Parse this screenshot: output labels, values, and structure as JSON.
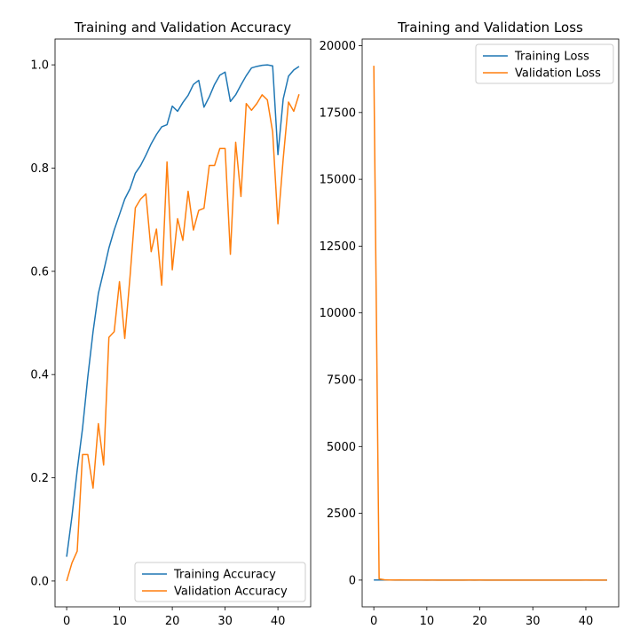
{
  "chart_data": [
    {
      "type": "line",
      "title": "Training and Validation Accuracy",
      "xlabel": "",
      "ylabel": "",
      "xlim": [
        -2.2,
        46.2
      ],
      "ylim": [
        -0.05,
        1.05
      ],
      "xticks": [
        0,
        10,
        20,
        30,
        40
      ],
      "yticks": [
        0.0,
        0.2,
        0.4,
        0.6,
        0.8,
        1.0
      ],
      "ytick_labels": [
        "0.0",
        "0.2",
        "0.4",
        "0.6",
        "0.8",
        "1.0"
      ],
      "grid": false,
      "legend_position": "bottom-right",
      "x": [
        0,
        1,
        2,
        3,
        4,
        5,
        6,
        7,
        8,
        9,
        10,
        11,
        12,
        13,
        14,
        15,
        16,
        17,
        18,
        19,
        20,
        21,
        22,
        23,
        24,
        25,
        26,
        27,
        28,
        29,
        30,
        31,
        32,
        33,
        34,
        35,
        36,
        37,
        38,
        39,
        40,
        41,
        42,
        43,
        44
      ],
      "series": [
        {
          "name": "Training Accuracy",
          "color": "#1f77b4",
          "values": [
            0.047,
            0.125,
            0.215,
            0.295,
            0.395,
            0.483,
            0.557,
            0.6,
            0.645,
            0.68,
            0.71,
            0.74,
            0.76,
            0.79,
            0.805,
            0.825,
            0.847,
            0.865,
            0.88,
            0.884,
            0.92,
            0.91,
            0.927,
            0.941,
            0.962,
            0.97,
            0.918,
            0.938,
            0.962,
            0.98,
            0.986,
            0.929,
            0.942,
            0.961,
            0.979,
            0.994,
            0.997,
            0.999,
            1.0,
            0.998,
            0.826,
            0.934,
            0.978,
            0.99,
            0.997
          ]
        },
        {
          "name": "Validation Accuracy",
          "color": "#ff7f0e",
          "values": [
            0.0,
            0.035,
            0.058,
            0.245,
            0.245,
            0.18,
            0.305,
            0.225,
            0.472,
            0.483,
            0.58,
            0.47,
            0.59,
            0.723,
            0.74,
            0.75,
            0.638,
            0.682,
            0.573,
            0.812,
            0.603,
            0.702,
            0.66,
            0.755,
            0.68,
            0.718,
            0.722,
            0.805,
            0.805,
            0.838,
            0.838,
            0.633,
            0.85,
            0.745,
            0.925,
            0.912,
            0.925,
            0.942,
            0.932,
            0.87,
            0.692,
            0.818,
            0.928,
            0.91,
            0.943
          ]
        }
      ]
    },
    {
      "type": "line",
      "title": "Training and Validation Loss",
      "xlabel": "",
      "ylabel": "",
      "xlim": [
        -2.2,
        46.2
      ],
      "ylim": [
        -1000,
        20250
      ],
      "xticks": [
        0,
        10,
        20,
        30,
        40
      ],
      "yticks": [
        0,
        2500,
        5000,
        7500,
        10000,
        12500,
        15000,
        17500,
        20000
      ],
      "ytick_labels": [
        "0",
        "2500",
        "5000",
        "7500",
        "10000",
        "12500",
        "15000",
        "17500",
        "20000"
      ],
      "grid": false,
      "legend_position": "top-right",
      "x": [
        0,
        1,
        2,
        3,
        4,
        5,
        6,
        7,
        8,
        9,
        10,
        11,
        12,
        13,
        14,
        15,
        16,
        17,
        18,
        19,
        20,
        21,
        22,
        23,
        24,
        25,
        26,
        27,
        28,
        29,
        30,
        31,
        32,
        33,
        34,
        35,
        36,
        37,
        38,
        39,
        40,
        41,
        42,
        43,
        44
      ],
      "series": [
        {
          "name": "Training Loss",
          "color": "#1f77b4",
          "values": [
            3.7,
            3.2,
            2.8,
            2.5,
            2.2,
            1.9,
            1.6,
            1.4,
            1.2,
            1.05,
            0.95,
            0.85,
            0.78,
            0.7,
            0.64,
            0.59,
            0.54,
            0.5,
            0.46,
            0.43,
            0.35,
            0.38,
            0.3,
            0.27,
            0.2,
            0.18,
            0.32,
            0.25,
            0.16,
            0.1,
            0.08,
            0.28,
            0.22,
            0.15,
            0.08,
            0.04,
            0.03,
            0.02,
            0.01,
            0.02,
            0.7,
            0.25,
            0.08,
            0.04,
            0.02
          ]
        },
        {
          "name": "Validation Loss",
          "color": "#ff7f0e",
          "values": [
            19250,
            45,
            12,
            6,
            5,
            8,
            4,
            6,
            3,
            3,
            2,
            3,
            2,
            1.5,
            1.4,
            1.3,
            2,
            1.8,
            2.5,
            1.1,
            2.4,
            1.7,
            2,
            1.5,
            2,
            1.6,
            1.5,
            1.1,
            1.1,
            1,
            1,
            2.2,
            0.9,
            1.5,
            0.5,
            0.6,
            0.5,
            0.4,
            0.5,
            0.8,
            2.5,
            1.2,
            0.5,
            0.6,
            0.4
          ]
        }
      ]
    }
  ]
}
